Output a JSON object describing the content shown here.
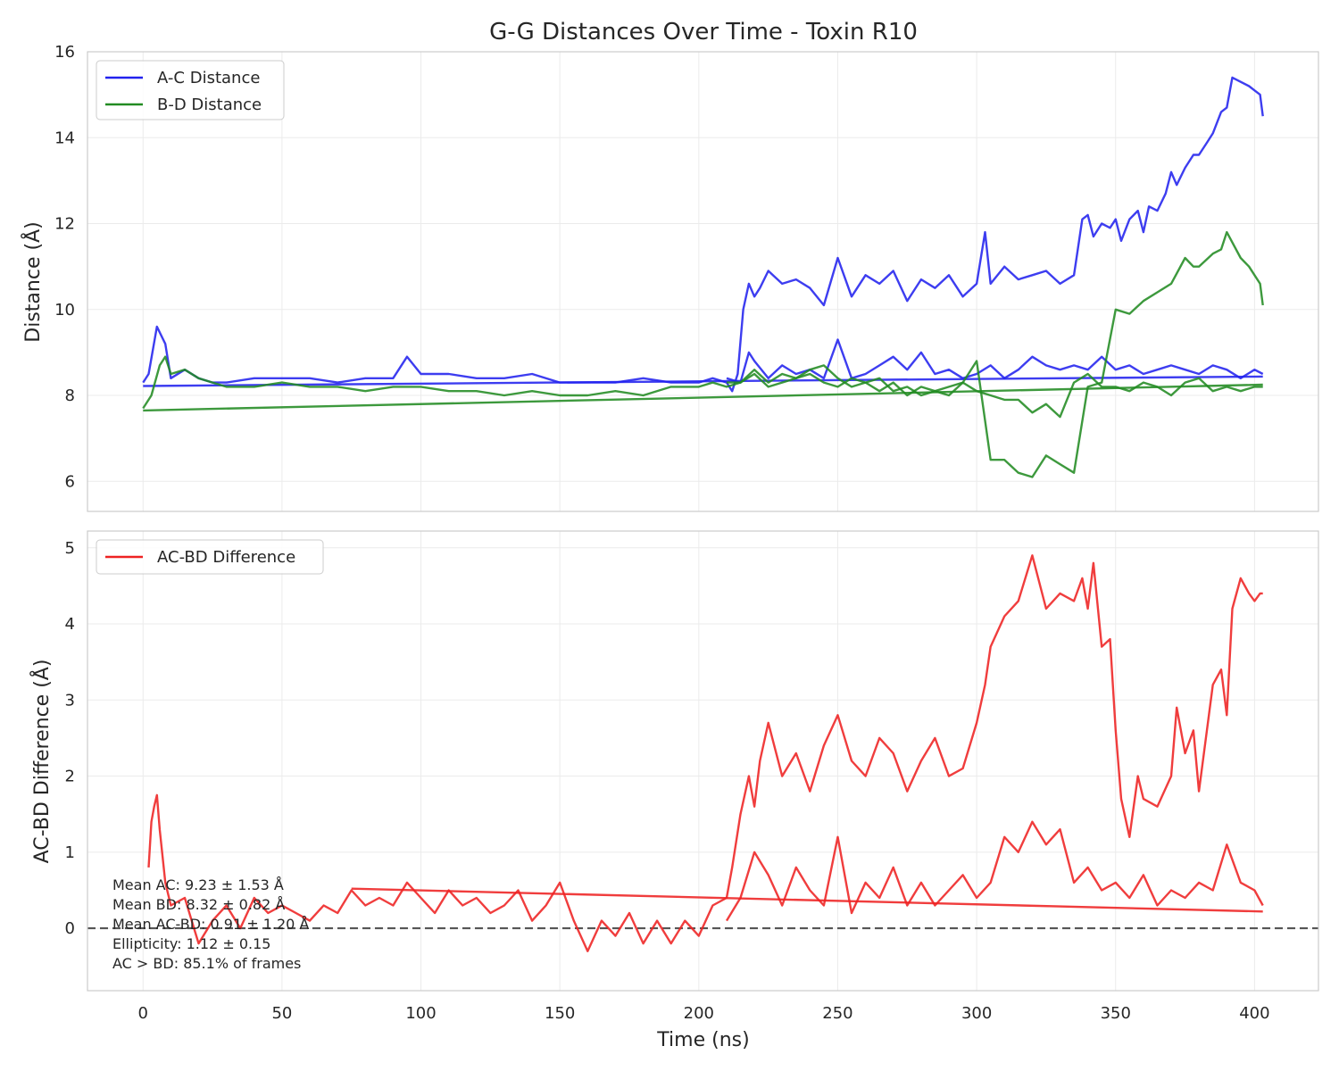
{
  "chart_data": [
    {
      "type": "line",
      "title": "G-G Distances Over Time - Toxin R10",
      "xlabel": "",
      "ylabel": "Distance (Å)",
      "xlim": [
        -20,
        423
      ],
      "ylim": [
        5.3,
        16
      ],
      "xticks": [
        0,
        50,
        100,
        150,
        200,
        250,
        300,
        350,
        400
      ],
      "yticks": [
        6,
        8,
        10,
        12,
        14,
        16
      ],
      "grid": true,
      "legend": "top-left",
      "series": [
        {
          "name": "A-C Distance",
          "color": "#2222ee",
          "x": [
            0,
            2,
            5,
            8,
            10,
            15,
            20,
            25,
            30,
            40,
            50,
            60,
            70,
            80,
            90,
            95,
            100,
            110,
            120,
            130,
            140,
            150,
            160,
            170,
            180,
            190,
            200,
            205,
            210,
            212,
            214,
            216,
            218,
            220,
            222,
            225,
            230,
            235,
            240,
            245,
            250,
            255,
            260,
            265,
            270,
            275,
            280,
            285,
            290,
            295,
            300,
            303,
            305,
            310,
            315,
            320,
            325,
            330,
            335,
            338,
            340,
            342,
            345,
            348,
            350,
            352,
            355,
            358,
            360,
            362,
            365,
            368,
            370,
            372,
            375,
            378,
            380,
            383,
            385,
            388,
            390,
            392,
            395,
            398,
            400,
            402,
            403
          ],
          "y": [
            8.3,
            8.5,
            9.6,
            9.2,
            8.4,
            8.6,
            8.4,
            8.3,
            8.3,
            8.4,
            8.4,
            8.4,
            8.3,
            8.4,
            8.4,
            8.9,
            8.5,
            8.5,
            8.4,
            8.4,
            8.5,
            8.3,
            8.3,
            8.3,
            8.4,
            8.3,
            8.3,
            8.4,
            8.3,
            8.1,
            8.5,
            10.0,
            10.6,
            10.3,
            10.5,
            10.9,
            10.6,
            10.7,
            10.5,
            10.1,
            11.2,
            10.3,
            10.8,
            10.6,
            10.9,
            10.2,
            10.7,
            10.5,
            10.8,
            10.3,
            10.6,
            11.8,
            10.6,
            11.0,
            10.7,
            10.8,
            10.9,
            10.6,
            10.8,
            12.1,
            12.2,
            11.7,
            12.0,
            11.9,
            12.1,
            11.6,
            12.1,
            12.3,
            11.8,
            12.4,
            12.3,
            12.7,
            13.2,
            12.9,
            13.3,
            13.6,
            13.6,
            13.9,
            14.1,
            14.6,
            14.7,
            15.4,
            15.3,
            15.2,
            15.1,
            15.0,
            14.5
          ]
        },
        {
          "name": "",
          "color": "#2222ee",
          "x": [
            0,
            403
          ],
          "y": [
            8.22,
            8.44
          ]
        },
        {
          "name": "",
          "color": "#2222ee",
          "x": [
            210,
            215,
            218,
            220,
            225,
            230,
            235,
            240,
            245,
            250,
            255,
            260,
            265,
            270,
            275,
            280,
            285,
            290,
            295,
            300,
            305,
            310,
            315,
            320,
            325,
            330,
            335,
            340,
            345,
            350,
            355,
            360,
            365,
            370,
            375,
            380,
            385,
            390,
            395,
            400,
            403
          ],
          "y": [
            8.4,
            8.3,
            9.0,
            8.8,
            8.4,
            8.7,
            8.5,
            8.6,
            8.4,
            9.3,
            8.4,
            8.5,
            8.7,
            8.9,
            8.6,
            9.0,
            8.5,
            8.6,
            8.4,
            8.5,
            8.7,
            8.4,
            8.6,
            8.9,
            8.7,
            8.6,
            8.7,
            8.6,
            8.9,
            8.6,
            8.7,
            8.5,
            8.6,
            8.7,
            8.6,
            8.5,
            8.7,
            8.6,
            8.4,
            8.6,
            8.5
          ]
        },
        {
          "name": "B-D Distance",
          "color": "#228b22",
          "x": [
            0,
            3,
            6,
            8,
            10,
            15,
            20,
            25,
            30,
            40,
            50,
            60,
            70,
            80,
            90,
            100,
            110,
            120,
            130,
            140,
            150,
            160,
            170,
            180,
            190,
            200,
            205,
            210,
            215,
            220,
            225,
            230,
            235,
            240,
            245,
            250,
            255,
            260,
            265,
            270,
            275,
            280,
            285,
            290,
            295,
            300,
            305,
            310,
            315,
            320,
            325,
            330,
            335,
            340,
            345,
            350,
            355,
            360,
            365,
            370,
            375,
            378,
            380,
            385,
            388,
            390,
            395,
            398,
            400,
            402,
            403
          ],
          "y": [
            7.7,
            8.0,
            8.7,
            8.9,
            8.5,
            8.6,
            8.4,
            8.3,
            8.2,
            8.2,
            8.3,
            8.2,
            8.2,
            8.1,
            8.2,
            8.2,
            8.1,
            8.1,
            8.0,
            8.1,
            8.0,
            8.0,
            8.1,
            8.0,
            8.2,
            8.2,
            8.3,
            8.2,
            8.3,
            8.6,
            8.3,
            8.5,
            8.4,
            8.6,
            8.7,
            8.4,
            8.2,
            8.3,
            8.4,
            8.1,
            8.2,
            8.0,
            8.1,
            8.2,
            8.3,
            8.8,
            6.5,
            6.5,
            6.2,
            6.1,
            6.6,
            6.4,
            6.2,
            8.2,
            8.3,
            10.0,
            9.9,
            10.2,
            10.4,
            10.6,
            11.2,
            11.0,
            11.0,
            11.3,
            11.4,
            11.8,
            11.2,
            11.0,
            10.8,
            10.6,
            10.1
          ]
        },
        {
          "name": "",
          "color": "#228b22",
          "x": [
            0,
            403
          ],
          "y": [
            7.65,
            8.25
          ]
        },
        {
          "name": "",
          "color": "#228b22",
          "x": [
            210,
            215,
            220,
            225,
            230,
            235,
            240,
            245,
            250,
            255,
            260,
            265,
            270,
            275,
            280,
            285,
            290,
            295,
            300,
            305,
            310,
            315,
            320,
            325,
            330,
            335,
            340,
            345,
            350,
            355,
            360,
            365,
            370,
            375,
            380,
            385,
            390,
            395,
            400,
            403
          ],
          "y": [
            8.3,
            8.3,
            8.5,
            8.2,
            8.3,
            8.4,
            8.5,
            8.3,
            8.2,
            8.4,
            8.3,
            8.1,
            8.3,
            8.0,
            8.2,
            8.1,
            8.0,
            8.3,
            8.1,
            8.0,
            7.9,
            7.9,
            7.6,
            7.8,
            7.5,
            8.3,
            8.5,
            8.2,
            8.2,
            8.1,
            8.3,
            8.2,
            8.0,
            8.3,
            8.4,
            8.1,
            8.2,
            8.1,
            8.2,
            8.2
          ]
        }
      ]
    },
    {
      "type": "line",
      "title": "",
      "xlabel": "Time (ns)",
      "ylabel": "AC-BD Difference (Å)",
      "xlim": [
        -20,
        423
      ],
      "ylim": [
        -0.82,
        5.22
      ],
      "xticks": [
        0,
        50,
        100,
        150,
        200,
        250,
        300,
        350,
        400
      ],
      "yticks": [
        0,
        1,
        2,
        3,
        4,
        5
      ],
      "grid": true,
      "legend": "top-left",
      "reference_line": {
        "y": 0,
        "style": "dashed",
        "color": "#555555"
      },
      "series": [
        {
          "name": "AC-BD Difference",
          "color": "#ee2222",
          "x": [
            2,
            3,
            4,
            5,
            6,
            8,
            10,
            15,
            20,
            25,
            30,
            35,
            40,
            45,
            50,
            55,
            60,
            65,
            70,
            75,
            80,
            85,
            90,
            95,
            100,
            105,
            110,
            115,
            120,
            125,
            130,
            135,
            140,
            145,
            150,
            155,
            160,
            165,
            170,
            175,
            180,
            185,
            190,
            195,
            200,
            205,
            210,
            212,
            215,
            218,
            220,
            222,
            225,
            230,
            235,
            240,
            245,
            250,
            255,
            260,
            265,
            270,
            275,
            280,
            285,
            290,
            295,
            300,
            303,
            305,
            310,
            315,
            320,
            325,
            330,
            335,
            338,
            340,
            342,
            345,
            348,
            350,
            352,
            355,
            358,
            360,
            365,
            370,
            372,
            375,
            378,
            380,
            385,
            388,
            390,
            392,
            395,
            398,
            400,
            402,
            403
          ],
          "y": [
            0.8,
            1.4,
            1.6,
            1.75,
            1.3,
            0.6,
            0.3,
            0.4,
            -0.2,
            0.1,
            0.3,
            0.0,
            0.4,
            0.2,
            0.3,
            0.2,
            0.1,
            0.3,
            0.2,
            0.5,
            0.3,
            0.4,
            0.3,
            0.6,
            0.4,
            0.2,
            0.5,
            0.3,
            0.4,
            0.2,
            0.3,
            0.5,
            0.1,
            0.3,
            0.6,
            0.1,
            -0.3,
            0.1,
            -0.1,
            0.2,
            -0.2,
            0.1,
            -0.2,
            0.1,
            -0.1,
            0.3,
            0.4,
            0.8,
            1.5,
            2.0,
            1.6,
            2.2,
            2.7,
            2.0,
            2.3,
            1.8,
            2.4,
            2.8,
            2.2,
            2.0,
            2.5,
            2.3,
            1.8,
            2.2,
            2.5,
            2.0,
            2.1,
            2.7,
            3.2,
            3.7,
            4.1,
            4.3,
            4.9,
            4.2,
            4.4,
            4.3,
            4.6,
            4.2,
            4.8,
            3.7,
            3.8,
            2.6,
            1.7,
            1.2,
            2.0,
            1.7,
            1.6,
            2.0,
            2.9,
            2.3,
            2.6,
            1.8,
            3.2,
            3.4,
            2.8,
            4.2,
            4.6,
            4.4,
            4.3,
            4.4,
            4.4
          ]
        },
        {
          "name": "",
          "color": "#ee2222",
          "x": [
            75,
            403
          ],
          "y": [
            0.52,
            0.22
          ]
        },
        {
          "name": "",
          "color": "#ee2222",
          "x": [
            210,
            215,
            220,
            225,
            230,
            235,
            240,
            245,
            250,
            255,
            260,
            265,
            270,
            275,
            280,
            285,
            290,
            295,
            300,
            305,
            310,
            315,
            320,
            325,
            330,
            335,
            340,
            345,
            350,
            355,
            360,
            365,
            370,
            375,
            380,
            385,
            390,
            395,
            400,
            403
          ],
          "y": [
            0.1,
            0.4,
            1.0,
            0.7,
            0.3,
            0.8,
            0.5,
            0.3,
            1.2,
            0.2,
            0.6,
            0.4,
            0.8,
            0.3,
            0.6,
            0.3,
            0.5,
            0.7,
            0.4,
            0.6,
            1.2,
            1.0,
            1.4,
            1.1,
            1.3,
            0.6,
            0.8,
            0.5,
            0.6,
            0.4,
            0.7,
            0.3,
            0.5,
            0.4,
            0.6,
            0.5,
            1.1,
            0.6,
            0.5,
            0.3
          ]
        }
      ]
    }
  ],
  "stats": {
    "mean_ac": "Mean AC: 9.23 ± 1.53 Å",
    "mean_bd": "Mean BD: 8.32 ± 0.82 Å",
    "mean_diff": "Mean AC-BD: 0.91 ± 1.20 Å",
    "ellipticity": "Ellipticity: 1.12 ± 0.15",
    "ac_gt_bd": "AC > BD: 85.1% of frames"
  }
}
